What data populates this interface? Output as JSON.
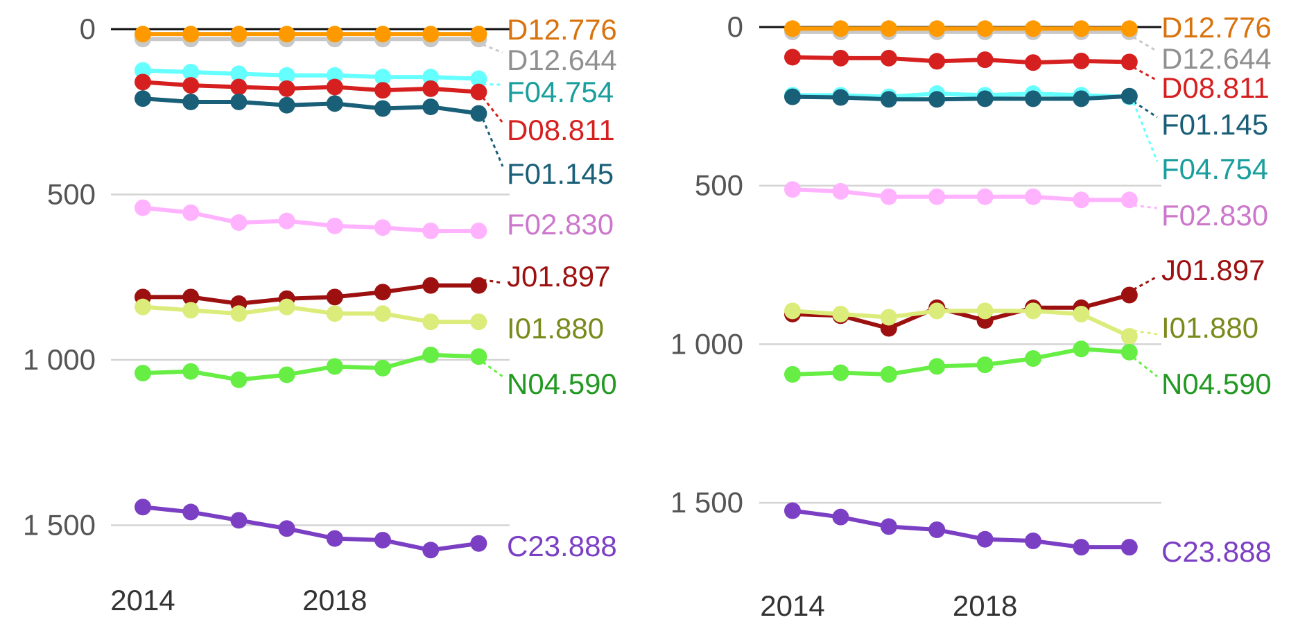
{
  "chart_data": [
    {
      "type": "line",
      "title": "",
      "xlabel": "",
      "ylabel": "",
      "y_inverted": true,
      "ylim": [
        0,
        1600
      ],
      "xlim": [
        2014,
        2021
      ],
      "x": [
        2014,
        2015,
        2016,
        2017,
        2018,
        2019,
        2020,
        2021
      ],
      "x_ticks": [
        2014,
        2018
      ],
      "x_tick_labels": [
        "2014",
        "2018"
      ],
      "y_ticks": [
        0,
        500,
        1000,
        1500
      ],
      "y_tick_labels": [
        "0",
        "500",
        "1 000",
        "1 500"
      ],
      "grid": true,
      "series": [
        {
          "name": "D12.644",
          "color": "#c8c8c8",
          "label_color": "#909090",
          "values": [
            30,
            30,
            30,
            30,
            30,
            30,
            30,
            30
          ]
        },
        {
          "name": "D12.776",
          "color": "#ff9900",
          "label_color": "#d9730d",
          "values": [
            15,
            15,
            15,
            15,
            15,
            15,
            15,
            15
          ]
        },
        {
          "name": "F04.754",
          "color": "#66ffff",
          "label_color": "#1a9e9e",
          "values": [
            125,
            130,
            135,
            140,
            140,
            145,
            145,
            150
          ]
        },
        {
          "name": "D08.811",
          "color": "#d62020",
          "label_color": "#d62020",
          "values": [
            160,
            170,
            175,
            180,
            175,
            185,
            180,
            190
          ]
        },
        {
          "name": "F01.145",
          "color": "#1a5f78",
          "label_color": "#1a5f78",
          "values": [
            210,
            220,
            220,
            230,
            225,
            240,
            235,
            255
          ]
        },
        {
          "name": "F02.830",
          "color": "#ffb3ff",
          "label_color": "#cc77cc",
          "values": [
            540,
            555,
            585,
            580,
            595,
            600,
            610,
            610
          ]
        },
        {
          "name": "J01.897",
          "color": "#9c1010",
          "label_color": "#9c1010",
          "values": [
            810,
            810,
            830,
            815,
            810,
            795,
            775,
            775
          ]
        },
        {
          "name": "I01.880",
          "color": "#dcec7a",
          "label_color": "#7a8a1a",
          "values": [
            840,
            850,
            860,
            840,
            860,
            860,
            885,
            885
          ]
        },
        {
          "name": "N04.590",
          "color": "#66ee44",
          "label_color": "#229922",
          "values": [
            1040,
            1035,
            1060,
            1045,
            1020,
            1025,
            985,
            990
          ]
        },
        {
          "name": "C23.888",
          "color": "#7b3fc4",
          "label_color": "#7b3fc4",
          "values": [
            1445,
            1460,
            1485,
            1510,
            1540,
            1545,
            1575,
            1555
          ]
        }
      ],
      "label_order": [
        "D12.776",
        "D12.644",
        "F04.754",
        "D08.811",
        "F01.145",
        "F02.830",
        "J01.897",
        "I01.880",
        "N04.590",
        "C23.888"
      ]
    },
    {
      "type": "line",
      "title": "",
      "xlabel": "",
      "ylabel": "",
      "y_inverted": true,
      "ylim": [
        0,
        1600
      ],
      "xlim": [
        2014,
        2021
      ],
      "x": [
        2014,
        2015,
        2016,
        2017,
        2018,
        2019,
        2020,
        2021
      ],
      "x_ticks": [
        2014,
        2018
      ],
      "x_tick_labels": [
        "2014",
        "2018"
      ],
      "y_ticks": [
        0,
        500,
        1000,
        1500
      ],
      "y_tick_labels": [
        "0",
        "500",
        "1 000",
        "1 500"
      ],
      "grid": true,
      "series": [
        {
          "name": "D12.644",
          "color": "#c8c8c8",
          "label_color": "#909090",
          "values": [
            15,
            15,
            15,
            15,
            15,
            15,
            15,
            15
          ]
        },
        {
          "name": "D12.776",
          "color": "#ff9900",
          "label_color": "#d9730d",
          "values": [
            5,
            5,
            5,
            5,
            5,
            5,
            5,
            5
          ]
        },
        {
          "name": "D08.811",
          "color": "#d62020",
          "label_color": "#d62020",
          "values": [
            95,
            98,
            98,
            108,
            103,
            112,
            107,
            110
          ]
        },
        {
          "name": "F04.754",
          "color": "#66ffff",
          "label_color": "#1a9e9e",
          "values": [
            215,
            215,
            220,
            210,
            215,
            210,
            215,
            220
          ]
        },
        {
          "name": "F01.145",
          "color": "#1a5f78",
          "label_color": "#1a5f78",
          "values": [
            220,
            222,
            228,
            228,
            226,
            226,
            226,
            218
          ]
        },
        {
          "name": "F02.830",
          "color": "#ffb3ff",
          "label_color": "#cc77cc",
          "values": [
            512,
            518,
            535,
            535,
            535,
            535,
            545,
            545
          ]
        },
        {
          "name": "J01.897",
          "color": "#9c1010",
          "label_color": "#9c1010",
          "values": [
            905,
            910,
            950,
            885,
            925,
            885,
            885,
            845
          ]
        },
        {
          "name": "I01.880",
          "color": "#dcec7a",
          "label_color": "#7a8a1a",
          "values": [
            895,
            905,
            915,
            895,
            895,
            895,
            905,
            975
          ]
        },
        {
          "name": "N04.590",
          "color": "#66ee44",
          "label_color": "#229922",
          "values": [
            1095,
            1090,
            1095,
            1070,
            1065,
            1045,
            1015,
            1025
          ]
        },
        {
          "name": "C23.888",
          "color": "#7b3fc4",
          "label_color": "#7b3fc4",
          "values": [
            1525,
            1545,
            1575,
            1585,
            1615,
            1620,
            1640,
            1640
          ]
        }
      ],
      "label_order": [
        "D12.776",
        "D12.644",
        "D08.811",
        "F01.145",
        "F04.754",
        "F02.830",
        "J01.897",
        "I01.880",
        "N04.590",
        "C23.888"
      ]
    }
  ]
}
